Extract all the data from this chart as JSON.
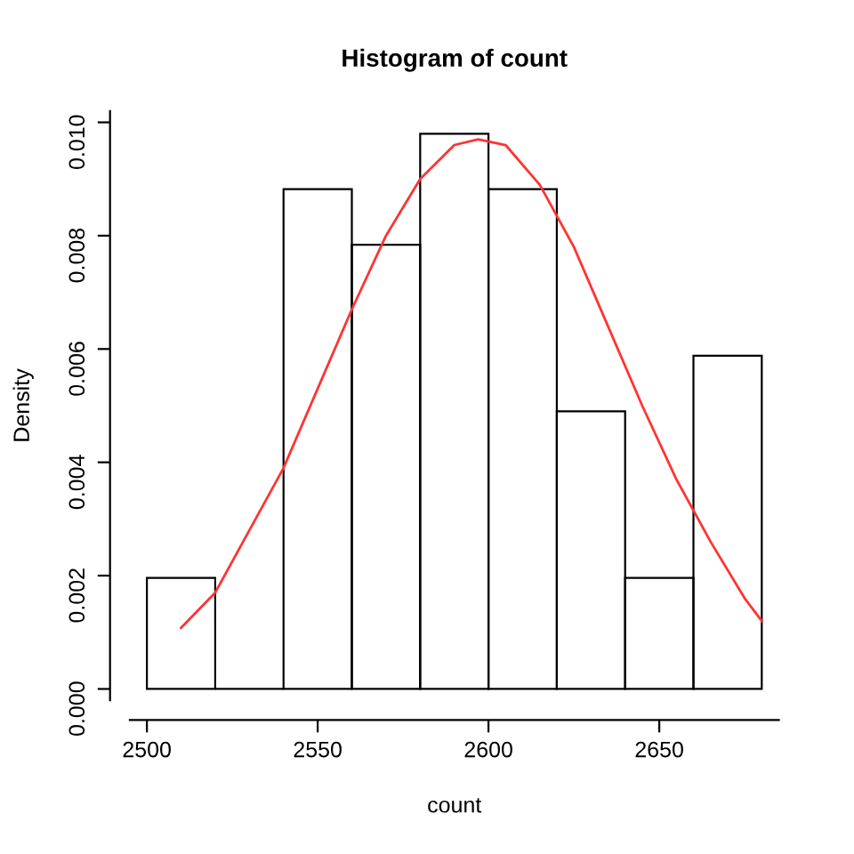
{
  "chart_data": {
    "type": "histogram",
    "title": "Histogram of count",
    "xlabel": "count",
    "ylabel": "Density",
    "bins": [
      2500,
      2520,
      2540,
      2560,
      2580,
      2600,
      2620,
      2640,
      2660,
      2680
    ],
    "values": [
      0.00196,
      0,
      0.00882,
      0.00784,
      0.0098,
      0.00882,
      0.0049,
      0.00196,
      0.00588
    ],
    "color": "#000000",
    "series": [
      {
        "type": "line",
        "color": "#ff3333",
        "x": [
          2510,
          2520,
          2530,
          2540,
          2550,
          2560,
          2570,
          2580,
          2590,
          2597,
          2605,
          2615,
          2625,
          2635,
          2645,
          2655,
          2665,
          2675,
          2680
        ],
        "values": [
          0.00108,
          0.0017,
          0.0028,
          0.0039,
          0.0053,
          0.0067,
          0.008,
          0.009,
          0.0096,
          0.0097,
          0.0096,
          0.0089,
          0.0078,
          0.0064,
          0.005,
          0.0037,
          0.0026,
          0.0016,
          0.0012
        ]
      }
    ],
    "xlim": [
      2495,
      2685
    ],
    "ylim": [
      -0.0002,
      0.0102
    ],
    "xticks": [
      2500,
      2550,
      2600,
      2650
    ],
    "yticks": [
      {
        "value": 0,
        "label": "0.000"
      },
      {
        "value": 0.002,
        "label": "0.002"
      },
      {
        "value": 0.004,
        "label": "0.004"
      },
      {
        "value": 0.006,
        "label": "0.006"
      },
      {
        "value": 0.008,
        "label": "0.008"
      },
      {
        "value": 0.01,
        "label": "0.010"
      }
    ],
    "grid": false,
    "legend": false
  }
}
